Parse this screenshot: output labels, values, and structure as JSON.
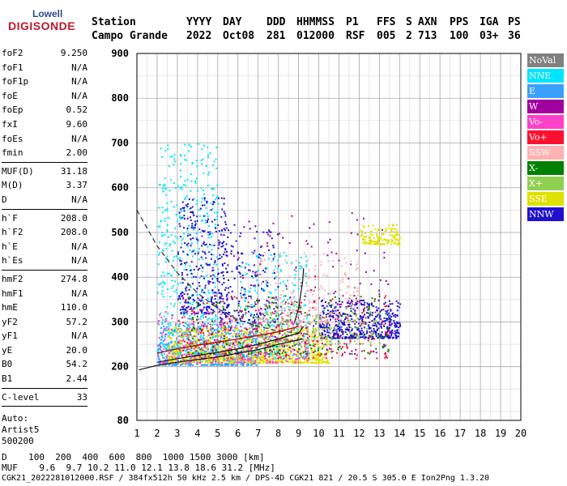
{
  "logo": {
    "top": "Lowell",
    "main": "DIGISONDE"
  },
  "header": {
    "labels": [
      "Station",
      "YYYY",
      "DAY",
      "DDD",
      "HHMMSS",
      "P1",
      "FFS",
      "S",
      "AXN",
      "PPS",
      "IGA",
      "PS"
    ],
    "values": [
      "Campo Grande",
      "2022",
      "Oct08",
      "281",
      "012000",
      "RSF",
      "005",
      "2",
      "713",
      "100",
      "03+",
      "36"
    ]
  },
  "params": [
    {
      "name": "foF2",
      "value": "9.250"
    },
    {
      "name": "foF1",
      "value": "N/A"
    },
    {
      "name": "foF1p",
      "value": "N/A"
    },
    {
      "name": "foE",
      "value": "N/A"
    },
    {
      "name": "foEp",
      "value": "0.52"
    },
    {
      "name": "fxI",
      "value": "9.60"
    },
    {
      "name": "foEs",
      "value": "N/A"
    },
    {
      "name": "fmin",
      "value": "2.00"
    },
    {
      "sep": true
    },
    {
      "name": "MUF(D)",
      "value": "31.18"
    },
    {
      "name": "M(D)",
      "value": "3.37"
    },
    {
      "name": "D",
      "value": "N/A"
    },
    {
      "sep": true
    },
    {
      "name": "h`F",
      "value": "208.0"
    },
    {
      "name": "h`F2",
      "value": "208.0"
    },
    {
      "name": "h`E",
      "value": "N/A"
    },
    {
      "name": "h`Es",
      "value": "N/A"
    },
    {
      "sep": true
    },
    {
      "name": "hmF2",
      "value": "274.8"
    },
    {
      "name": "hmF1",
      "value": "N/A"
    },
    {
      "name": "hmE",
      "value": "110.0"
    },
    {
      "name": "yF2",
      "value": "57.2"
    },
    {
      "name": "yF1",
      "value": "N/A"
    },
    {
      "name": "yE",
      "value": "20.0"
    },
    {
      "name": "B0",
      "value": "54.2"
    },
    {
      "name": "B1",
      "value": "2.44"
    },
    {
      "sep": true
    },
    {
      "name": "C-level",
      "value": "33"
    },
    {
      "sep": true
    }
  ],
  "auto": [
    "Auto:",
    "Artist5",
    "500200"
  ],
  "legend": [
    {
      "label": "NoVal",
      "color": "#808080"
    },
    {
      "label": "NNE",
      "color": "#00e5ff"
    },
    {
      "label": "E",
      "color": "#3aa0ff"
    },
    {
      "label": "W",
      "color": "#a000a0"
    },
    {
      "label": "Vo-",
      "color": "#ff40c8"
    },
    {
      "label": "Vo+",
      "color": "#ff1030"
    },
    {
      "label": "SSW",
      "color": "#ffb0b0"
    },
    {
      "label": "X-",
      "color": "#008000"
    },
    {
      "label": "X+",
      "color": "#90d050"
    },
    {
      "label": "SSE",
      "color": "#e0e000"
    },
    {
      "label": "NNW",
      "color": "#2010d0"
    }
  ],
  "footer": {
    "d_label": "D",
    "d_values": [
      "100",
      "200",
      "400",
      "600",
      "800",
      "1000",
      "1500",
      "3000"
    ],
    "d_unit": "[km]",
    "muf_label": "MUF",
    "muf_values": [
      "9.6",
      "9.7",
      "10.2",
      "11.0",
      "12.1",
      "13.8",
      "18.6",
      "31.2"
    ],
    "muf_unit": "[MHz]",
    "file_line": "CGK21_2022281012000.RSF / 384fx512h 50 kHz 2.5 km / DPS-4D CGK21 821 / 20.5 S 305.0 E Ion2Png 1.3.20"
  },
  "chart_data": {
    "type": "scatter",
    "x_ticks": [
      1,
      2,
      3,
      4,
      5,
      6,
      7,
      8,
      9,
      10,
      11,
      12,
      13,
      14,
      15,
      16,
      17,
      18,
      19,
      20
    ],
    "y_ticks": [
      80,
      200,
      300,
      400,
      500,
      600,
      700,
      800,
      900
    ],
    "xlim": [
      1,
      20
    ],
    "ylim": [
      80,
      900
    ],
    "grid": true,
    "regions": [
      {
        "color": "#3aa0ff",
        "x": [
          2.0,
          7.0
        ],
        "y": [
          205,
          300
        ],
        "n": 700
      },
      {
        "color": "#00e5ff",
        "x": [
          2.0,
          5.0
        ],
        "y": [
          230,
          700
        ],
        "n": 500
      },
      {
        "color": "#00e5ff",
        "x": [
          6.0,
          9.5
        ],
        "y": [
          220,
          460
        ],
        "n": 300
      },
      {
        "color": "#2010d0",
        "x": [
          3.0,
          5.5
        ],
        "y": [
          320,
          580
        ],
        "n": 320
      },
      {
        "color": "#2010d0",
        "x": [
          5.0,
          8.0
        ],
        "y": [
          300,
          520
        ],
        "n": 180
      },
      {
        "color": "#2010d0",
        "x": [
          10.0,
          14.0
        ],
        "y": [
          265,
          350
        ],
        "n": 520
      },
      {
        "color": "#e0e000",
        "x": [
          2.5,
          10.5
        ],
        "y": [
          210,
          290
        ],
        "n": 900
      },
      {
        "color": "#e0e000",
        "x": [
          12.0,
          14.0
        ],
        "y": [
          475,
          520
        ],
        "n": 140
      },
      {
        "color": "#ff40c8",
        "x": [
          2.0,
          9.5
        ],
        "y": [
          210,
          330
        ],
        "n": 380
      },
      {
        "color": "#ff1030",
        "x": [
          3.0,
          13.5
        ],
        "y": [
          220,
          360
        ],
        "n": 260
      },
      {
        "color": "#008000",
        "x": [
          3.5,
          13.5
        ],
        "y": [
          230,
          360
        ],
        "n": 220
      },
      {
        "color": "#a000a0",
        "x": [
          4.0,
          13.5
        ],
        "y": [
          230,
          550
        ],
        "n": 150
      },
      {
        "color": "#ffb0b0",
        "x": [
          7.0,
          12.0
        ],
        "y": [
          300,
          460
        ],
        "n": 200
      },
      {
        "color": "#90d050",
        "x": [
          7.0,
          13.0
        ],
        "y": [
          250,
          340
        ],
        "n": 160
      },
      {
        "color": "#808080",
        "x": [
          6.0,
          12.0
        ],
        "y": [
          250,
          420
        ],
        "n": 80
      }
    ],
    "dashed_curve": {
      "x": [
        1,
        2,
        3,
        4,
        5,
        6,
        7,
        8,
        9,
        9.6
      ],
      "y": [
        550,
        470,
        410,
        365,
        330,
        305,
        290,
        280,
        275,
        272
      ]
    },
    "solid_curves": [
      {
        "x": [
          2.0,
          3,
          4,
          5,
          6,
          7,
          8,
          9,
          9.25
        ],
        "y": [
          210,
          218,
          225,
          232,
          240,
          250,
          262,
          275,
          290
        ]
      },
      {
        "x": [
          1.1,
          2,
          3,
          4,
          5,
          6,
          7,
          8,
          9.2
        ],
        "y": [
          193,
          203,
          210,
          216,
          222,
          230,
          238,
          250,
          262
        ]
      },
      {
        "x": [
          8.8,
          9.0,
          9.1,
          9.2,
          9.25
        ],
        "y": [
          300,
          330,
          360,
          390,
          420
        ]
      }
    ],
    "profile_curve": {
      "x": [
        2,
        3,
        4,
        5,
        6,
        7,
        8,
        9
      ],
      "y": [
        230,
        240,
        248,
        255,
        262,
        270,
        278,
        290
      ]
    }
  }
}
